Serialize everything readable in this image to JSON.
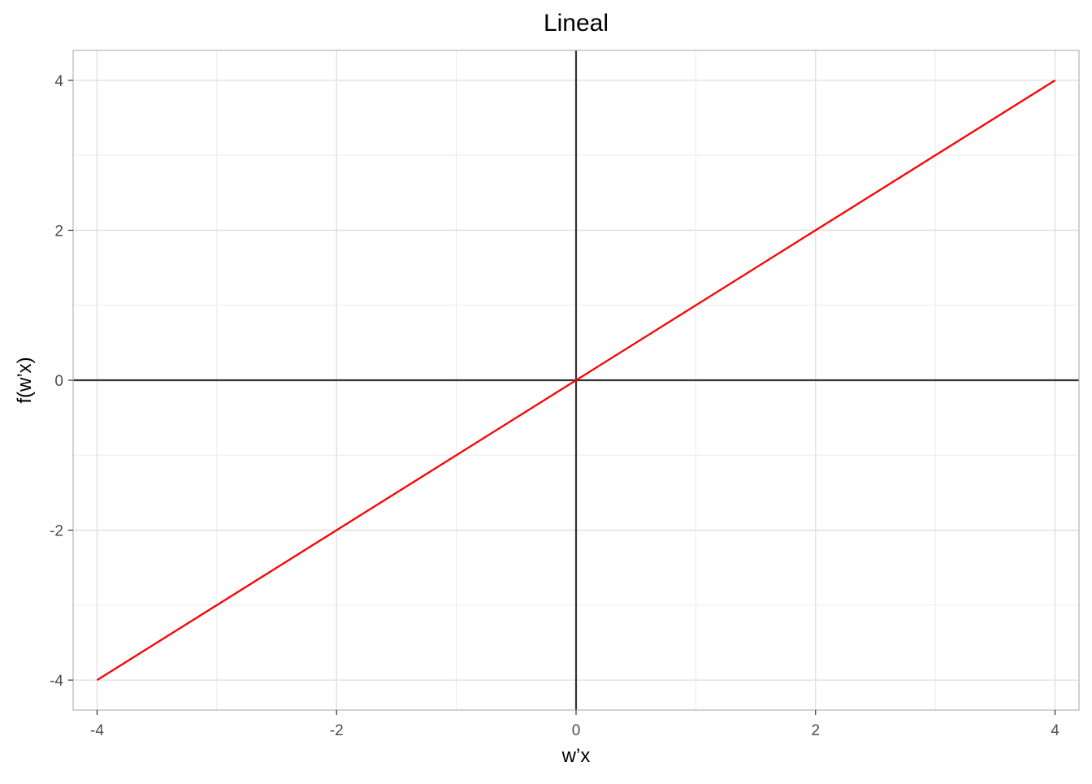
{
  "chart_data": {
    "type": "line",
    "title": "Lineal",
    "xlabel": "w’x",
    "ylabel": "f(w’x)",
    "xlim": [
      -4.2,
      4.2
    ],
    "ylim": [
      -4.4,
      4.4
    ],
    "x_ticks": [
      -4,
      -2,
      0,
      2,
      4
    ],
    "y_ticks": [
      -4,
      -2,
      0,
      2,
      4
    ],
    "x_tick_labels": [
      "-4",
      "-2",
      "0",
      "2",
      "4"
    ],
    "y_tick_labels": [
      "-4",
      "-2",
      "0",
      "2",
      "4"
    ],
    "x_minor": [
      -3,
      -1,
      1,
      3
    ],
    "y_minor": [
      -3,
      -1,
      1,
      3
    ],
    "grid": true,
    "reference_lines": {
      "x": 0,
      "y": 0,
      "color": "#333333"
    },
    "series": [
      {
        "color": "#ff0000",
        "x": [
          -4,
          4
        ],
        "y": [
          -4,
          4
        ]
      }
    ]
  }
}
